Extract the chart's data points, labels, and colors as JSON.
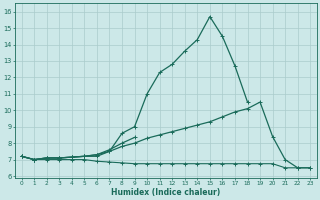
{
  "xlabel": "Humidex (Indice chaleur)",
  "bg_color": "#cce8e8",
  "grid_color": "#aacccc",
  "line_color": "#1a6b5a",
  "xlim": [
    -0.5,
    23.5
  ],
  "ylim": [
    5.9,
    16.5
  ],
  "xticks": [
    0,
    1,
    2,
    3,
    4,
    5,
    6,
    7,
    8,
    9,
    10,
    11,
    12,
    13,
    14,
    15,
    16,
    17,
    18,
    19,
    20,
    21,
    22,
    23
  ],
  "yticks": [
    6,
    7,
    8,
    9,
    10,
    11,
    12,
    13,
    14,
    15,
    16
  ],
  "line1_x": [
    0,
    1,
    2,
    3,
    4,
    5,
    6,
    7,
    8,
    9,
    10,
    11,
    12,
    13,
    14,
    15,
    16,
    17,
    18,
    19,
    20,
    21,
    22,
    23
  ],
  "line1_y": [
    7.2,
    7.0,
    7.1,
    7.1,
    7.15,
    7.2,
    7.2,
    7.5,
    8.6,
    9.0,
    11.0,
    12.3,
    12.8,
    13.6,
    14.3,
    15.7,
    14.5,
    12.7,
    10.5,
    null,
    null,
    null,
    null,
    null
  ],
  "line2_x": [
    0,
    1,
    2,
    3,
    4,
    5,
    6,
    7,
    8,
    9,
    10,
    11,
    12,
    13,
    14,
    15,
    16,
    17,
    18,
    19,
    20,
    21,
    22,
    23
  ],
  "line2_y": [
    7.2,
    7.0,
    7.1,
    7.1,
    7.15,
    7.2,
    7.3,
    7.5,
    7.8,
    8.0,
    8.3,
    8.5,
    8.7,
    8.9,
    9.1,
    9.3,
    9.6,
    9.9,
    10.1,
    10.5,
    8.4,
    7.0,
    6.5,
    6.5
  ],
  "line3_x": [
    0,
    1,
    2,
    3,
    4,
    5,
    6,
    7,
    8,
    9,
    10,
    11,
    12,
    13,
    14,
    15,
    16,
    17,
    18,
    19,
    20,
    21,
    22,
    23
  ],
  "line3_y": [
    7.2,
    7.0,
    7.1,
    7.1,
    7.15,
    7.2,
    7.3,
    7.6,
    8.0,
    8.35,
    null,
    null,
    null,
    null,
    null,
    null,
    null,
    null,
    null,
    null,
    null,
    null,
    null,
    null
  ],
  "line4_x": [
    0,
    1,
    2,
    3,
    4,
    5,
    6,
    7,
    8,
    9,
    10,
    11,
    12,
    13,
    14,
    15,
    16,
    17,
    18,
    19,
    20,
    21,
    22,
    23
  ],
  "line4_y": [
    7.2,
    7.0,
    7.0,
    7.0,
    7.0,
    7.0,
    6.9,
    6.85,
    6.8,
    6.75,
    6.75,
    6.75,
    6.75,
    6.75,
    6.75,
    6.75,
    6.75,
    6.75,
    6.75,
    6.75,
    6.75,
    6.5,
    6.5,
    6.5
  ]
}
